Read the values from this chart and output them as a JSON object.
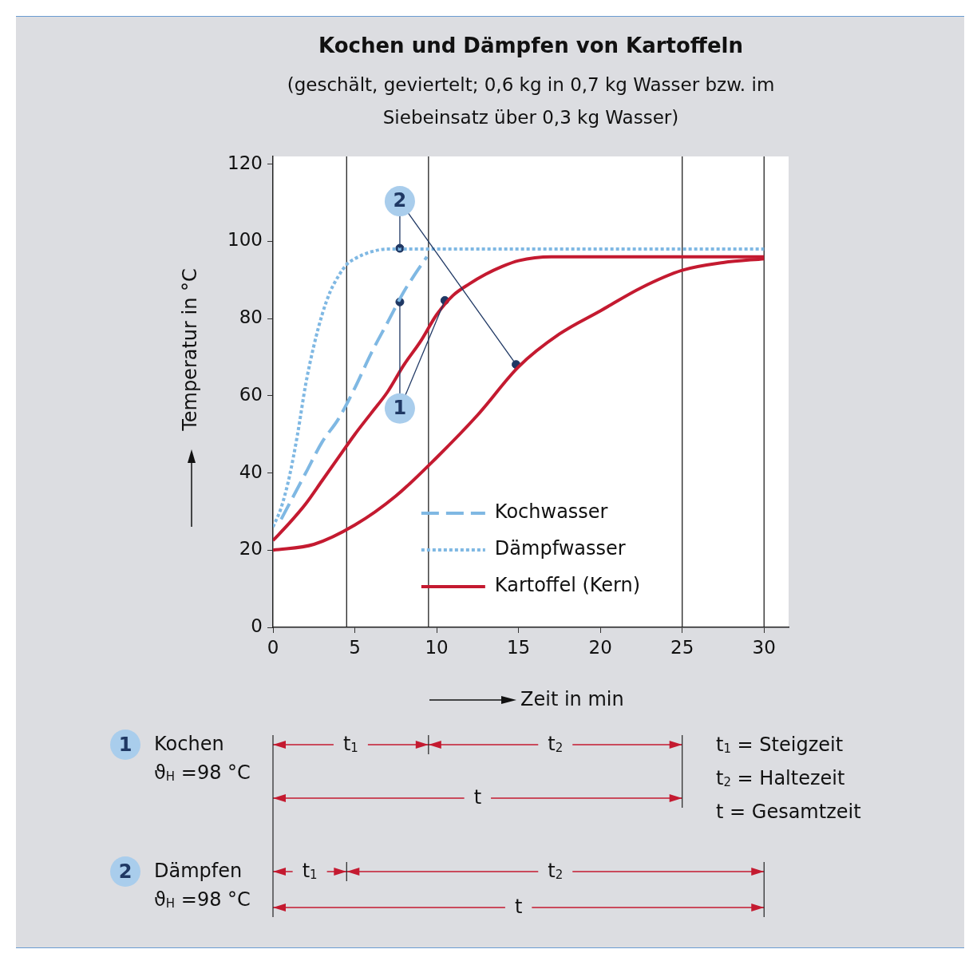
{
  "chart_data": {
    "type": "line",
    "title": "Kochen und Dämpfen von Kartoffeln",
    "subtitle": "(geschält, geviertelt; 0,6 kg in 0,7 kg Wasser bzw. im Siebeinsatz über 0,3 kg Wasser)",
    "xlabel": "Zeit in min",
    "ylabel": "Temperatur in °C",
    "xlim": [
      0,
      31.5
    ],
    "xticks": [
      0,
      5,
      10,
      15,
      20,
      25,
      30
    ],
    "ylim": [
      0,
      122
    ],
    "yticks": [
      0,
      20,
      40,
      60,
      80,
      100,
      120
    ],
    "grid": false,
    "legend": "bottom",
    "series": [
      {
        "name": "Kochwasser",
        "color": "#7fb8e3",
        "line_style": "dashed",
        "x": [
          0.5,
          1,
          2,
          3,
          4,
          5,
          6,
          7,
          8,
          8.6,
          9.4
        ],
        "values": [
          28,
          32,
          40,
          48,
          54,
          62,
          71,
          79,
          87,
          91,
          96
        ]
      },
      {
        "name": "Dämpfwasser",
        "color": "#7fb8e3",
        "line_style": "dotted",
        "x": [
          0,
          0.5,
          1,
          1.5,
          2,
          2.5,
          3,
          3.5,
          4,
          4.5,
          5,
          6,
          7,
          8,
          10,
          15,
          20,
          25,
          30
        ],
        "values": [
          26,
          31,
          39,
          50,
          63,
          73,
          81,
          87,
          91,
          94,
          95.5,
          97.3,
          98,
          98,
          98,
          98,
          98,
          98,
          98
        ]
      },
      {
        "name": "Kartoffel (Kern)",
        "color": "#c41a30",
        "line_style": "solid",
        "x": [
          0,
          1,
          2,
          3,
          4,
          5,
          6,
          7,
          8,
          9,
          10,
          11,
          12,
          13,
          14,
          15,
          17,
          20,
          25,
          30
        ],
        "values": [
          22.5,
          27,
          32,
          38,
          44,
          50,
          55.5,
          61,
          68,
          74,
          81,
          86,
          89,
          91.5,
          93.5,
          95,
          96,
          96,
          96,
          96
        ]
      },
      {
        "color": "#c41a30",
        "line_style": "solid",
        "x": [
          0,
          2.5,
          5,
          7.5,
          10,
          12.5,
          15,
          17.5,
          20,
          22.5,
          25,
          27.5,
          30
        ],
        "values": [
          20,
          21.5,
          26.5,
          34,
          44,
          55,
          67.5,
          76,
          82,
          88,
          92.5,
          94.5,
          95.5
        ]
      },
      {
        "type": "scatter",
        "marker": "circle",
        "color": "#1f3864",
        "x": [
          7.75,
          10.5
        ],
        "values": [
          84.3,
          84.7
        ]
      },
      {
        "type": "scatter",
        "marker": "circle",
        "color": "#1f3864",
        "x": [
          7.75,
          14.85
        ],
        "values": [
          98.2,
          68.1
        ]
      }
    ],
    "ref_lines": [
      {
        "axis": "x",
        "value": 4.5,
        "color": "#222222"
      },
      {
        "axis": "x",
        "value": 9.5,
        "color": "#222222"
      },
      {
        "axis": "x",
        "value": 25,
        "color": "#222222"
      },
      {
        "axis": "x",
        "value": 30,
        "color": "#222222"
      }
    ],
    "annotations": [
      {
        "text": "1",
        "x": 7.75,
        "y": 56.7
      },
      {
        "text": "2",
        "x": 7.75,
        "y": 110.4
      },
      "Kochen",
      "ϑ$_{H}$ =98 °C",
      "Dämpfen",
      "ϑ$_{H}$ =98 °C",
      "t$_{1}$",
      "t$_{2}$",
      "t",
      "t$_{1}$",
      "t$_{2}$",
      "t",
      "t$_{1}$ = Steigzeit",
      "t$_{2}$ = Haltezeit",
      "t  = Gesamtzeit"
    ]
  }
}
